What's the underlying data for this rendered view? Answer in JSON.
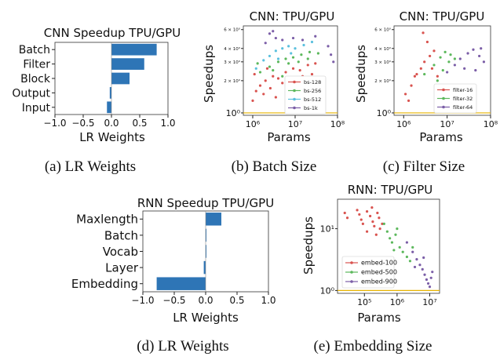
{
  "captions": {
    "a": "(a) LR Weights",
    "b": "(b) Batch Size",
    "c": "(c) Filter Size",
    "d": "(d) LR Weights",
    "e": "(e) Embedding Size"
  },
  "chart_data": [
    {
      "id": "a",
      "type": "bar",
      "orientation": "horizontal",
      "title": "CNN Speedup TPU/GPU",
      "xlabel": "LR Weights",
      "ylabel": "",
      "categories": [
        "Batch",
        "Filter",
        "Block",
        "Output",
        "Input"
      ],
      "values": [
        0.8,
        0.58,
        0.32,
        -0.03,
        -0.08
      ],
      "xlim": [
        -1.0,
        1.0
      ],
      "xticks": [
        "−1.0",
        "−0.5",
        "0.0",
        "0.5",
        "1.0"
      ],
      "bar_color": "#2e75b6"
    },
    {
      "id": "b",
      "type": "scatter",
      "title": "CNN: TPU/GPU",
      "xlabel": "Params",
      "ylabel": "Speedups",
      "xscale": "log",
      "yscale": "log",
      "xlim": [
        600000,
        100000000
      ],
      "ylim": [
        0.95,
        6.5
      ],
      "xticks": [
        "10⁶",
        "10⁷",
        "10⁸"
      ],
      "yticks": [
        "10⁰",
        "2 × 10⁰",
        "3 × 10⁰",
        "4 × 10⁰",
        "6 × 10⁰"
      ],
      "legend_position": "lower-right",
      "series": [
        {
          "name": "bs-128",
          "color": "#d9534f",
          "points": [
            [
              1200000,
              1.6
            ],
            [
              1500000,
              1.8
            ],
            [
              2000000,
              2.0
            ],
            [
              3000000,
              2.2
            ],
            [
              4000000,
              2.1
            ],
            [
              6000000,
              2.4
            ],
            [
              9000000,
              2.6
            ],
            [
              13000000,
              2.5
            ],
            [
              20000000,
              2.8
            ],
            [
              30000000,
              2.9
            ],
            [
              1000000,
              1.3
            ],
            [
              1800000,
              1.5
            ],
            [
              2600000,
              1.7
            ],
            [
              5000000,
              1.9
            ],
            [
              8000000,
              2.0
            ],
            [
              15000000,
              2.2
            ],
            [
              25000000,
              2.3
            ],
            [
              1100000,
              2.3
            ],
            [
              2200000,
              2.6
            ],
            [
              3500000,
              1.4
            ]
          ]
        },
        {
          "name": "bs-256",
          "color": "#5cb85c",
          "points": [
            [
              1500000,
              2.4
            ],
            [
              2500000,
              2.7
            ],
            [
              4000000,
              3.0
            ],
            [
              6000000,
              3.2
            ],
            [
              9000000,
              3.3
            ],
            [
              14000000,
              3.5
            ],
            [
              22000000,
              3.7
            ],
            [
              35000000,
              3.6
            ],
            [
              3000000,
              2.5
            ],
            [
              7000000,
              2.9
            ],
            [
              12000000,
              3.0
            ],
            [
              20000000,
              3.2
            ],
            [
              1300000,
              2.9
            ],
            [
              5000000,
              2.2
            ]
          ]
        },
        {
          "name": "bs-512",
          "color": "#5bc0de",
          "points": [
            [
              1200000,
              2.6
            ],
            [
              1800000,
              3.1
            ],
            [
              2500000,
              3.4
            ],
            [
              3500000,
              3.8
            ],
            [
              5000000,
              4.0
            ],
            [
              7000000,
              4.2
            ],
            [
              10000000,
              4.0
            ],
            [
              16000000,
              4.3
            ],
            [
              25000000,
              4.6
            ],
            [
              4000000,
              3.2
            ],
            [
              8000000,
              3.6
            ]
          ]
        },
        {
          "name": "bs-1k",
          "color": "#7b5ea7",
          "points": [
            [
              2000000,
              4.5
            ],
            [
              2500000,
              5.5
            ],
            [
              3500000,
              5.0
            ],
            [
              5000000,
              4.8
            ],
            [
              9000000,
              5.0
            ],
            [
              15000000,
              4.8
            ],
            [
              30000000,
              5.2
            ],
            [
              60000000,
              4.2
            ],
            [
              70000000,
              3.5
            ],
            [
              80000000,
              3.0
            ],
            [
              3000000,
              5.8
            ]
          ]
        }
      ]
    },
    {
      "id": "c",
      "type": "scatter",
      "title": "CNN: TPU/GPU",
      "xlabel": "Params",
      "ylabel": "Speedups",
      "xscale": "log",
      "yscale": "log",
      "xlim": [
        600000,
        100000000
      ],
      "ylim": [
        0.95,
        6.5
      ],
      "xticks": [
        "10⁶",
        "10⁷",
        "10⁸"
      ],
      "yticks": [
        "10⁰",
        "2 × 10⁰",
        "3 × 10⁰",
        "4 × 10⁰",
        "6 × 10⁰"
      ],
      "legend_position": "lower-right",
      "series": [
        {
          "name": "filter-16",
          "color": "#d9534f",
          "points": [
            [
              1100000,
              1.5
            ],
            [
              1500000,
              1.8
            ],
            [
              2000000,
              2.3
            ],
            [
              2500000,
              2.6
            ],
            [
              3000000,
              3.0
            ],
            [
              4000000,
              3.4
            ],
            [
              5000000,
              3.8
            ],
            [
              3500000,
              4.6
            ],
            [
              2800000,
              5.6
            ],
            [
              1800000,
              2.2
            ],
            [
              1300000,
              1.3
            ],
            [
              4500000,
              2.6
            ],
            [
              6000000,
              2.2
            ]
          ]
        },
        {
          "name": "filter-32",
          "color": "#5cb85c",
          "points": [
            [
              3000000,
              2.3
            ],
            [
              5000000,
              2.8
            ],
            [
              7000000,
              3.3
            ],
            [
              9000000,
              3.7
            ],
            [
              12000000,
              3.5
            ],
            [
              15000000,
              3.2
            ],
            [
              8000000,
              2.5
            ],
            [
              11000000,
              3.0
            ],
            [
              6000000,
              2.0
            ]
          ]
        },
        {
          "name": "filter-64",
          "color": "#7b5ea7",
          "points": [
            [
              10000000,
              2.4
            ],
            [
              15000000,
              2.8
            ],
            [
              20000000,
              3.2
            ],
            [
              30000000,
              3.6
            ],
            [
              40000000,
              3.9
            ],
            [
              55000000,
              3.4
            ],
            [
              70000000,
              3.0
            ],
            [
              25000000,
              2.6
            ],
            [
              45000000,
              2.5
            ],
            [
              60000000,
              4.0
            ]
          ]
        }
      ]
    },
    {
      "id": "d",
      "type": "bar",
      "orientation": "horizontal",
      "title": "RNN Speedup TPU/GPU",
      "xlabel": "LR Weights",
      "ylabel": "",
      "categories": [
        "Maxlength",
        "Batch",
        "Vocab",
        "Layer",
        "Embedding"
      ],
      "values": [
        0.25,
        0.0,
        0.01,
        -0.03,
        -0.78
      ],
      "xlim": [
        -1.0,
        1.0
      ],
      "xticks": [
        "−1.0",
        "−0.5",
        "0.0",
        "0.5",
        "1.0"
      ],
      "bar_color": "#2e75b6"
    },
    {
      "id": "e",
      "type": "scatter",
      "title": "RNN: TPU/GPU",
      "xlabel": "Params",
      "ylabel": "Speedups",
      "xscale": "log",
      "yscale": "log",
      "xlim": [
        15000,
        20000000
      ],
      "ylim": [
        0.9,
        30
      ],
      "xticks": [
        "10⁵",
        "10⁶",
        "10⁷"
      ],
      "yticks": [
        "10⁰",
        "10¹"
      ],
      "legend_position": "lower-left",
      "series": [
        {
          "name": "embed-100",
          "color": "#d9534f",
          "points": [
            [
              25000,
              18
            ],
            [
              30000,
              15
            ],
            [
              60000,
              20
            ],
            [
              70000,
              17
            ],
            [
              80000,
              14
            ],
            [
              90000,
              12
            ],
            [
              120000,
              19
            ],
            [
              150000,
              16
            ],
            [
              180000,
              13
            ],
            [
              200000,
              11
            ],
            [
              250000,
              18
            ],
            [
              280000,
              15
            ],
            [
              300000,
              10
            ],
            [
              350000,
              12
            ],
            [
              120000,
              9
            ],
            [
              170000,
              22
            ],
            [
              230000,
              8
            ]
          ]
        },
        {
          "name": "embed-500",
          "color": "#5cb85c",
          "points": [
            [
              400000,
              12
            ],
            [
              500000,
              9
            ],
            [
              600000,
              7
            ],
            [
              700000,
              6
            ],
            [
              900000,
              8
            ],
            [
              1200000,
              5
            ],
            [
              1500000,
              4.2
            ],
            [
              2000000,
              3.5
            ],
            [
              2500000,
              3.0
            ],
            [
              1000000,
              10
            ],
            [
              800000,
              4.5
            ],
            [
              3000000,
              5
            ]
          ]
        },
        {
          "name": "embed-900",
          "color": "#7b5ea7",
          "points": [
            [
              2000000,
              6
            ],
            [
              3000000,
              4.2
            ],
            [
              4000000,
              3.2
            ],
            [
              5000000,
              2.6
            ],
            [
              6000000,
              2.2
            ],
            [
              7000000,
              1.8
            ],
            [
              8000000,
              1.5
            ],
            [
              9000000,
              1.3
            ],
            [
              10000000,
              1.15
            ],
            [
              12000000,
              2
            ],
            [
              3500000,
              2.4
            ],
            [
              6500000,
              3.4
            ],
            [
              11000000,
              1.6
            ]
          ]
        }
      ]
    }
  ]
}
